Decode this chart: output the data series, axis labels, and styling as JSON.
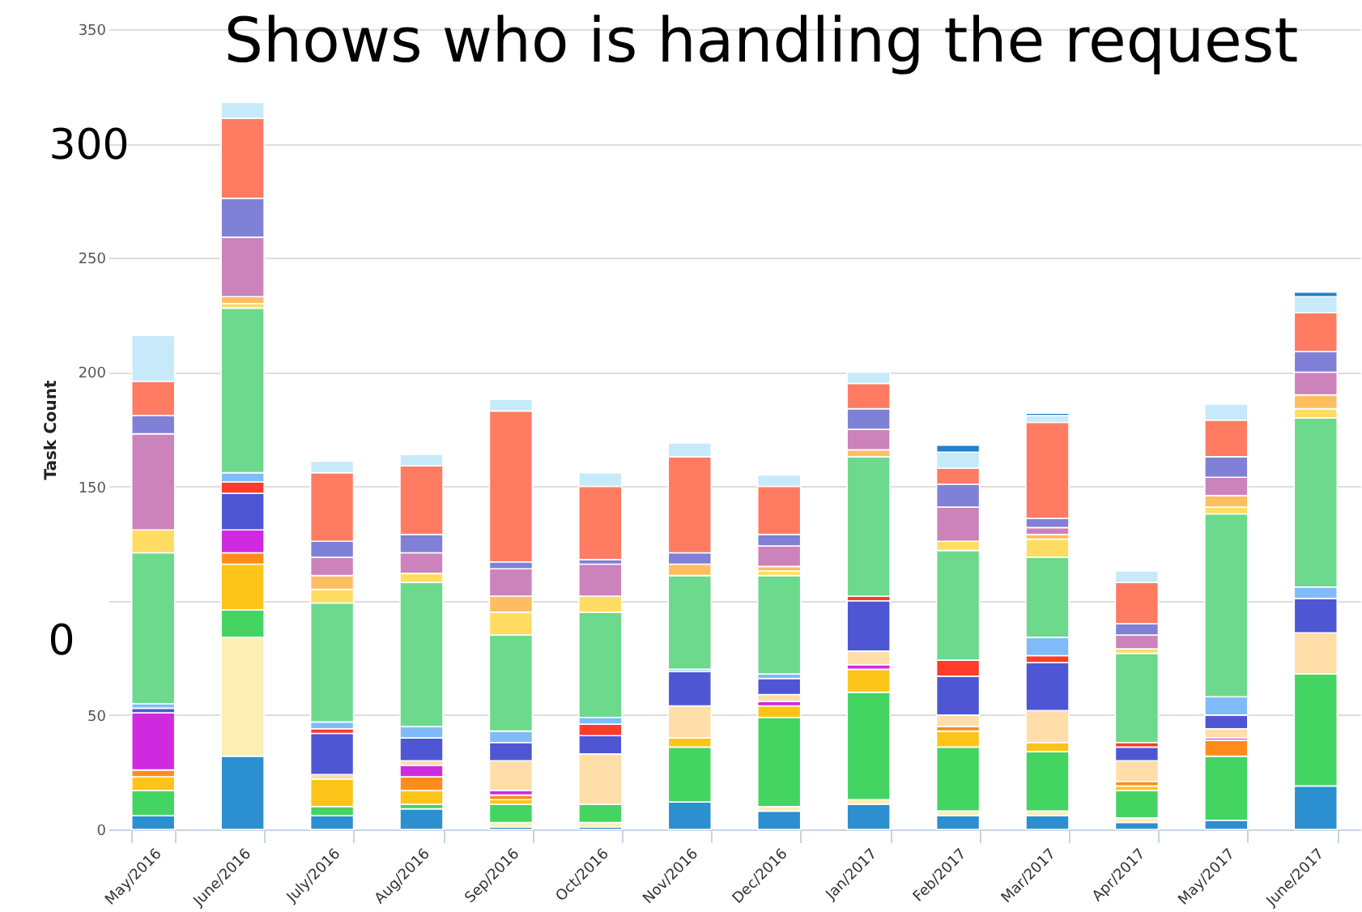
{
  "chart_data": {
    "type": "bar",
    "stacked": true,
    "title": "Shows who is handling the request",
    "ylabel": "Task Count",
    "annotations": [
      "300",
      "0"
    ],
    "categories": [
      "May/2016",
      "June/2016",
      "July/2016",
      "Aug/2016",
      "Sep/2016",
      "Oct/2016",
      "Nov/2016",
      "Dec/2016",
      "Jan/2017",
      "Feb/2017",
      "Mar/2017",
      "Apr/2017",
      "May/2017",
      "June/2017"
    ],
    "ylim": [
      0,
      350
    ],
    "yticks": [
      0,
      50,
      {
        "value": 100,
        "label": null
      },
      150,
      200,
      250,
      {
        "value": 300,
        "label": null
      },
      350
    ],
    "grid": "y",
    "series": [
      {
        "color": "#2b8fd0",
        "values": [
          6,
          32,
          6,
          9,
          1,
          1,
          12,
          8,
          11,
          6,
          6,
          3,
          4,
          19
        ]
      },
      {
        "color": "#fbefb5",
        "values": [
          null,
          52,
          null,
          null,
          2,
          2,
          null,
          2,
          2,
          2,
          2,
          2,
          null,
          null
        ]
      },
      {
        "color": "#44d462",
        "values": [
          11,
          12,
          4,
          2,
          8,
          8,
          24,
          39,
          47,
          28,
          26,
          12,
          28,
          49
        ]
      },
      {
        "color": "#fcc419",
        "values": [
          6,
          20,
          12,
          6,
          2,
          null,
          4,
          5,
          10,
          7,
          4,
          2,
          null,
          null
        ]
      },
      {
        "color": "#ff8c1a",
        "values": [
          3,
          5,
          null,
          6,
          2,
          null,
          null,
          null,
          null,
          2,
          null,
          2,
          7,
          null
        ]
      },
      {
        "color": "#d02ae0",
        "values": [
          25,
          10,
          null,
          5,
          2,
          null,
          null,
          2,
          2,
          null,
          null,
          null,
          1,
          null
        ]
      },
      {
        "color": "#ffdeaa",
        "values": [
          null,
          null,
          2,
          2,
          13,
          22,
          14,
          3,
          6,
          5,
          14,
          9,
          4,
          18
        ]
      },
      {
        "color": "#4f56d4",
        "values": [
          2,
          16,
          18,
          10,
          8,
          8,
          15,
          7,
          22,
          17,
          21,
          6,
          6,
          15
        ]
      },
      {
        "color": "#ff3b2a",
        "values": [
          null,
          5,
          2,
          null,
          null,
          5,
          null,
          null,
          2,
          7,
          3,
          2,
          null,
          null
        ]
      },
      {
        "color": "#7fbbf9",
        "values": [
          2,
          4,
          3,
          5,
          5,
          3,
          1,
          2,
          null,
          null,
          8,
          null,
          8,
          5
        ]
      },
      {
        "color": "#6cd98d",
        "values": [
          66,
          72,
          52,
          63,
          42,
          46,
          41,
          43,
          61,
          48,
          35,
          39,
          80,
          74
        ]
      },
      {
        "color": "#ffdd63",
        "values": [
          10,
          2,
          6,
          4,
          10,
          7,
          null,
          2,
          null,
          4,
          8,
          2,
          3,
          4
        ]
      },
      {
        "color": "#ffbd62",
        "values": [
          null,
          3,
          6,
          null,
          7,
          null,
          5,
          2,
          3,
          null,
          2,
          null,
          5,
          6
        ]
      },
      {
        "color": "#cc82bb",
        "values": [
          42,
          26,
          8,
          9,
          12,
          14,
          null,
          9,
          9,
          15,
          3,
          6,
          8,
          10
        ]
      },
      {
        "color": "#8080d6",
        "values": [
          8,
          17,
          7,
          8,
          3,
          2,
          5,
          5,
          9,
          10,
          4,
          5,
          9,
          9
        ]
      },
      {
        "color": "#ff7b61",
        "values": [
          15,
          35,
          30,
          30,
          66,
          32,
          42,
          21,
          11,
          7,
          42,
          18,
          16,
          17
        ]
      },
      {
        "color": "#c6eafa",
        "values": [
          20,
          7,
          5,
          5,
          5,
          6,
          6,
          5,
          5,
          7,
          3,
          5,
          7,
          7
        ]
      },
      {
        "color": "#2680c8",
        "values": [
          null,
          null,
          null,
          null,
          null,
          null,
          null,
          null,
          null,
          3,
          1,
          null,
          null,
          2
        ]
      }
    ]
  }
}
